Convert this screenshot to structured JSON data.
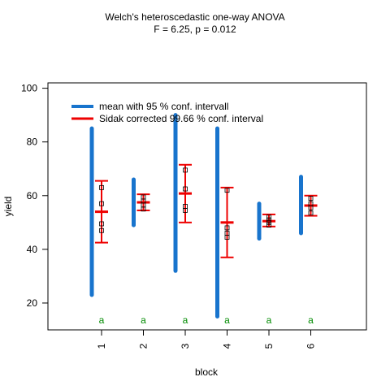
{
  "chart_data": {
    "type": "interval",
    "title": "Welch's heteroscedastic one-way ANOVA",
    "subtitle": "F = 6.25, p = 0.012",
    "xlabel": "block",
    "ylabel": "yield",
    "ylim": [
      10,
      102
    ],
    "yticks": [
      20,
      40,
      60,
      80,
      100
    ],
    "categories": [
      "1",
      "2",
      "3",
      "4",
      "5",
      "6"
    ],
    "legend": {
      "position": "top-left",
      "entries": [
        {
          "label": "mean with 95 % conf. intervall",
          "color": "#1874CD"
        },
        {
          "label": "Sidak corrected 99.66 % conf. interval",
          "color": "#EE0000"
        }
      ]
    },
    "means": [
      54.0,
      57.5,
      60.8,
      50.0,
      50.5,
      56.3
    ],
    "ci95": [
      [
        23,
        85
      ],
      [
        49,
        66
      ],
      [
        32,
        90
      ],
      [
        15,
        85
      ],
      [
        44,
        57
      ],
      [
        46,
        67
      ]
    ],
    "sidak": [
      [
        42.5,
        65.5
      ],
      [
        54.5,
        60.5
      ],
      [
        50,
        71.5
      ],
      [
        37,
        63
      ],
      [
        48.5,
        53
      ],
      [
        52.5,
        60
      ]
    ],
    "points": [
      [
        47,
        49.5,
        57,
        63
      ],
      [
        55,
        56.5,
        58,
        59.5
      ],
      [
        54.5,
        56,
        62.5,
        69.5
      ],
      [
        44.5,
        46,
        48,
        62
      ],
      [
        49,
        50,
        51,
        52
      ],
      [
        53.5,
        55.5,
        57,
        59
      ]
    ],
    "group_letters": [
      "a",
      "a",
      "a",
      "a",
      "a",
      "a"
    ],
    "colors": {
      "ci95": "#1874CD",
      "sidak": "#EE0000",
      "letters": "#008B00",
      "points": "#000000"
    }
  }
}
